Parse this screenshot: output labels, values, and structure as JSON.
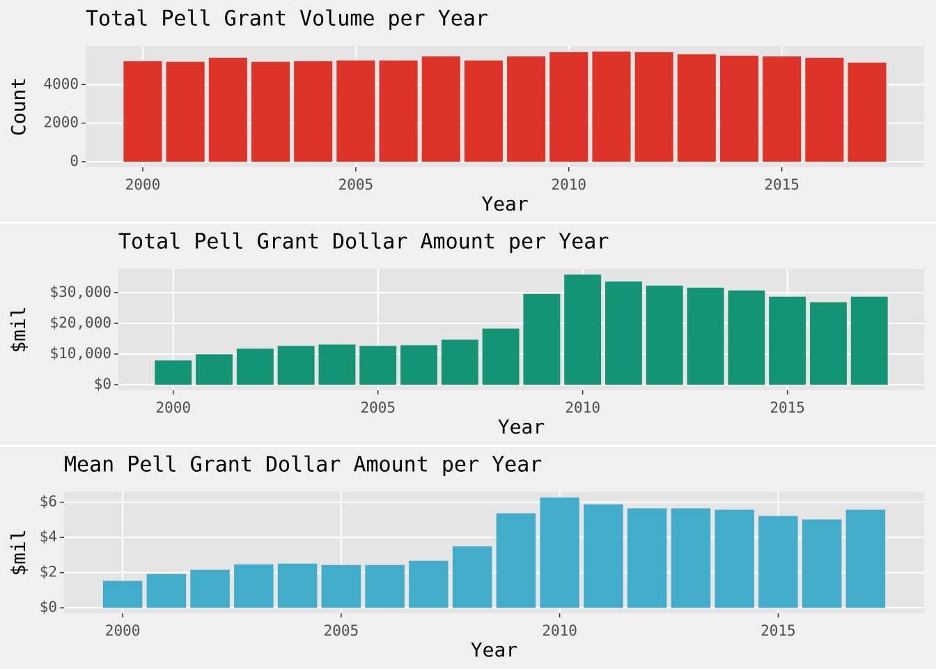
{
  "chart_data": [
    {
      "type": "bar",
      "title": "Total Pell Grant Volume per Year",
      "x_label": "Year",
      "y_label": "Count",
      "x": [
        2000,
        2001,
        2002,
        2003,
        2004,
        2005,
        2006,
        2007,
        2008,
        2009,
        2010,
        2011,
        2012,
        2013,
        2014,
        2015,
        2016,
        2017
      ],
      "values": [
        5210,
        5180,
        5390,
        5180,
        5210,
        5250,
        5250,
        5460,
        5250,
        5460,
        5680,
        5710,
        5680,
        5570,
        5500,
        5460,
        5390,
        5140
      ],
      "color": "#de3329",
      "xlim": [
        1998.66,
        2018.34
      ],
      "ylim": [
        -286,
        6000
      ],
      "xticks": [
        2000,
        2005,
        2010,
        2015
      ],
      "yticks": [
        0,
        2000,
        4000
      ],
      "grid": true
    },
    {
      "type": "bar",
      "title": "Total Pell Grant Dollar Amount per Year",
      "x_label": "Year",
      "y_label": "$mil",
      "x": [
        2000,
        2001,
        2002,
        2003,
        2004,
        2005,
        2006,
        2007,
        2008,
        2009,
        2010,
        2011,
        2012,
        2013,
        2014,
        2015,
        2016,
        2017
      ],
      "values": [
        7900,
        9930,
        11740,
        12640,
        13090,
        12640,
        12870,
        14670,
        18280,
        29570,
        35890,
        33630,
        32280,
        31600,
        30700,
        28670,
        26860,
        28670
      ],
      "color": "#139474",
      "xlim": [
        1998.66,
        2018.34
      ],
      "ylim": [
        -1795,
        37690
      ],
      "xticks": [
        2000,
        2005,
        2010,
        2015
      ],
      "yticks": [
        {
          "value": 0,
          "label": "$0"
        },
        {
          "value": 10000,
          "label": "$10,000"
        },
        {
          "value": 20000,
          "label": "$20,000"
        },
        {
          "value": 30000,
          "label": "$30,000"
        }
      ],
      "grid": true
    },
    {
      "type": "bar",
      "title": "Mean Pell Grant Dollar Amount per Year",
      "x_label": "Year",
      "y_label": "$mil",
      "x": [
        2000,
        2001,
        2002,
        2003,
        2004,
        2005,
        2006,
        2007,
        2008,
        2009,
        2010,
        2011,
        2012,
        2013,
        2014,
        2015,
        2016,
        2017
      ],
      "values": [
        1.53,
        1.92,
        2.16,
        2.47,
        2.51,
        2.43,
        2.43,
        2.67,
        3.49,
        5.37,
        6.27,
        5.88,
        5.65,
        5.65,
        5.57,
        5.22,
        5.02,
        5.57
      ],
      "color": "#42adcb",
      "xlim": [
        1998.66,
        2018.34
      ],
      "ylim": [
        -0.31,
        6.58
      ],
      "xticks": [
        2000,
        2005,
        2010,
        2015
      ],
      "yticks": [
        {
          "value": 0,
          "label": "$0"
        },
        {
          "value": 2,
          "label": "$2"
        },
        {
          "value": 4,
          "label": "$4"
        },
        {
          "value": 6,
          "label": "$6"
        }
      ],
      "grid": true
    }
  ]
}
